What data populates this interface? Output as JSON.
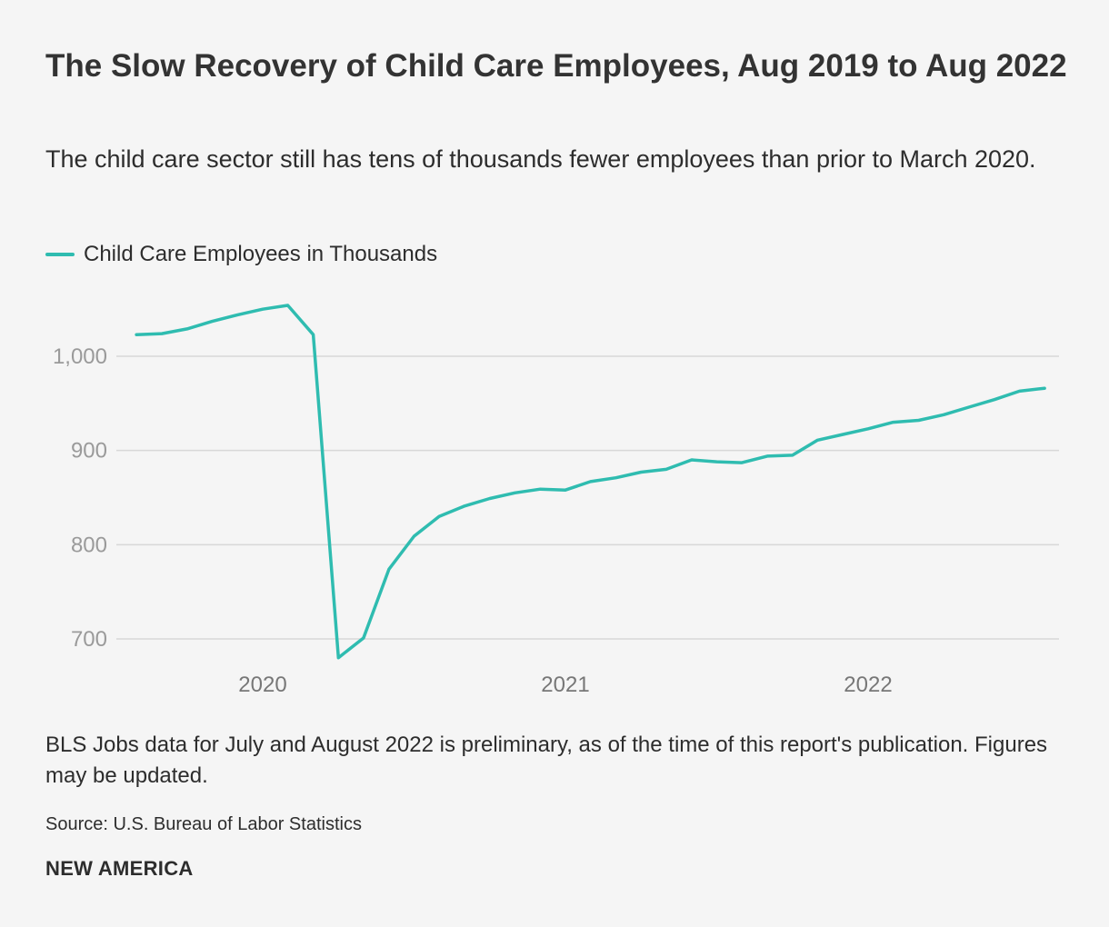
{
  "colors": {
    "series": "#2fbcb0",
    "grid": "#d8d8d8",
    "background": "#f5f5f5"
  },
  "note": "BLS Jobs data for July and August 2022 is preliminary, as of the time of this report's publication. Figures may be updated.",
  "source": "Source: U.S. Bureau of Labor Statistics",
  "brand": "NEW AMERICA",
  "chart_data": {
    "type": "line",
    "title": "The Slow Recovery of Child Care Employees, Aug 2019 to Aug 2022",
    "subtitle": "The child care sector still has tens of thousands fewer employees than prior to March 2020.",
    "xlabel": "",
    "ylabel": "",
    "ylim": [
      660,
      1070
    ],
    "yticks": [
      700,
      800,
      900,
      1000
    ],
    "ytick_labels": [
      "700",
      "800",
      "900",
      "1,000"
    ],
    "xticks": [
      {
        "value": 2020.0,
        "label": "2020"
      },
      {
        "value": 2021.0,
        "label": "2021"
      },
      {
        "value": 2022.0,
        "label": "2022"
      }
    ],
    "xlim": [
      2019.5,
      2022.66
    ],
    "grid": true,
    "legend_position": "top-left",
    "series": [
      {
        "name": "Child Care Employees in Thousands",
        "x": [
          2019.583,
          2019.667,
          2019.75,
          2019.833,
          2019.917,
          2020.0,
          2020.083,
          2020.167,
          2020.25,
          2020.333,
          2020.417,
          2020.5,
          2020.583,
          2020.667,
          2020.75,
          2020.833,
          2020.917,
          2021.0,
          2021.083,
          2021.167,
          2021.25,
          2021.333,
          2021.417,
          2021.5,
          2021.583,
          2021.667,
          2021.75,
          2021.833,
          2021.917,
          2022.0,
          2022.083,
          2022.167,
          2022.25,
          2022.333,
          2022.417,
          2022.5,
          2022.583
        ],
        "values": [
          1023,
          1024,
          1029,
          1037,
          1044,
          1050,
          1054,
          1023,
          680,
          701,
          774,
          809,
          830,
          841,
          849,
          855,
          859,
          858,
          867,
          871,
          877,
          880,
          890,
          888,
          887,
          894,
          895,
          911,
          917,
          923,
          930,
          932,
          938,
          946,
          954,
          963,
          966
        ]
      }
    ]
  }
}
